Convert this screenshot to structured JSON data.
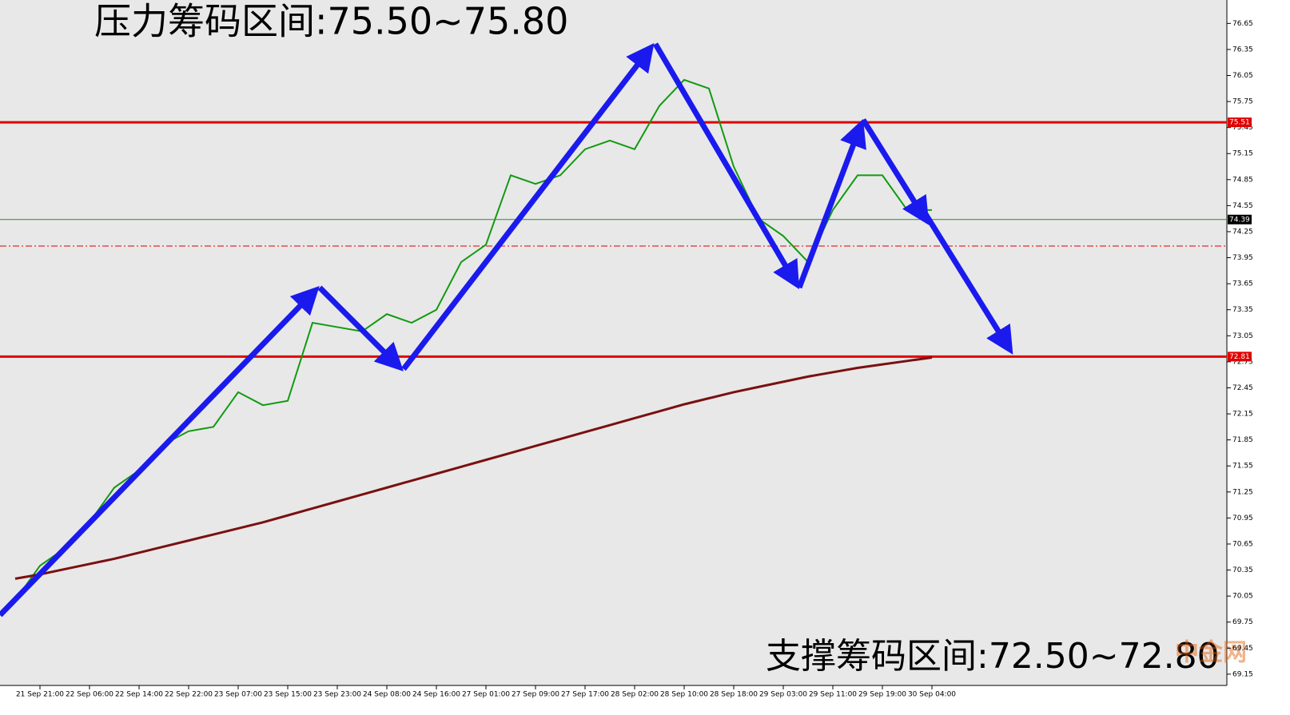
{
  "chart_data": {
    "type": "line",
    "title": "压力筹码区间:75.50~75.80",
    "subtitle": "支撑筹码区间:72.50~72.80",
    "watermark": "中金网",
    "x": [
      null,
      "21 Sep 21:00",
      null,
      "22 Sep 06:00",
      null,
      "22 Sep 14:00",
      null,
      "22 Sep 22:00",
      null,
      "23 Sep 07:00",
      null,
      "23 Sep 15:00",
      null,
      "23 Sep 23:00",
      null,
      "24 Sep 08:00",
      null,
      "24 Sep 16:00",
      null,
      "27 Sep 01:00",
      null,
      "27 Sep 09:00",
      null,
      "27 Sep 17:00",
      null,
      "28 Sep 02:00",
      null,
      "28 Sep 10:00",
      null,
      "28 Sep 18:00",
      null,
      "29 Sep 03:00",
      null,
      "29 Sep 11:00",
      null,
      "29 Sep 19:00",
      null,
      "30 Sep 04:00"
    ],
    "series": [
      {
        "color": "#129a12",
        "values": [
          70.0,
          70.4,
          70.6,
          70.9,
          71.3,
          71.5,
          71.8,
          71.95,
          72.0,
          72.4,
          72.25,
          72.3,
          73.2,
          73.15,
          73.1,
          73.3,
          73.2,
          73.35,
          73.9,
          74.1,
          74.9,
          74.8,
          74.9,
          75.2,
          75.3,
          75.2,
          75.7,
          76.0,
          75.9,
          75.0,
          74.4,
          74.2,
          73.9,
          74.5,
          74.9,
          74.9,
          74.5,
          74.5
        ]
      },
      {
        "color": "#7a1010",
        "values": [
          70.25,
          70.3,
          70.36,
          70.42,
          70.48,
          70.55,
          70.62,
          70.69,
          70.76,
          70.83,
          70.9,
          70.98,
          71.06,
          71.14,
          71.22,
          71.3,
          71.38,
          71.46,
          71.54,
          71.62,
          71.7,
          71.78,
          71.86,
          71.94,
          72.02,
          72.1,
          72.18,
          72.26,
          72.33,
          72.4,
          72.46,
          72.52,
          72.58,
          72.63,
          72.68,
          72.72,
          72.76,
          72.8
        ]
      }
    ],
    "levels": [
      {
        "value": 75.51,
        "color": "#e00000"
      },
      {
        "value": 72.81,
        "color": "#e00000"
      },
      {
        "value": 74.39,
        "color": "#2c8a2c"
      }
    ],
    "ylim": [
      69.02,
      76.92
    ],
    "yticks": [
      76.65,
      76.35,
      76.05,
      75.75,
      75.45,
      75.15,
      74.85,
      74.55,
      74.25,
      73.95,
      73.65,
      73.35,
      73.05,
      72.75,
      72.45,
      72.15,
      71.85,
      71.55,
      71.25,
      70.95,
      70.65,
      70.35,
      70.05,
      69.75,
      69.45,
      69.15
    ]
  }
}
